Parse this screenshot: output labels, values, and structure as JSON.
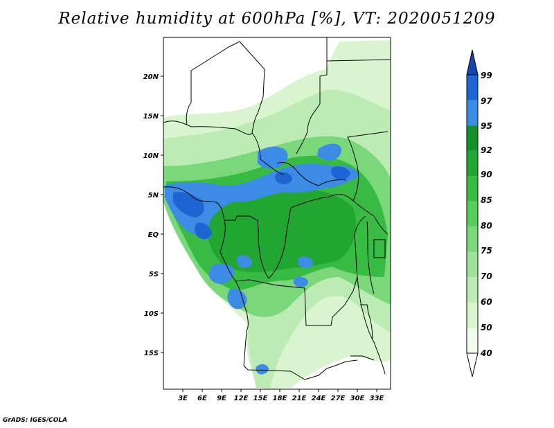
{
  "title": "Relative humidity at 600hPa [%], VT: 2020051209",
  "footer": "GrADS: IGES/COLA",
  "map": {
    "lon_range": [
      0,
      36
    ],
    "lat_range": [
      -20,
      24
    ],
    "lon_ticks": [
      "3E",
      "6E",
      "9E",
      "12E",
      "15E",
      "18E",
      "21E",
      "24E",
      "27E",
      "30E",
      "33E"
    ],
    "lat_ticks": [
      "20N",
      "15N",
      "10N",
      "5N",
      "EQ",
      "5S",
      "10S",
      "15S"
    ]
  },
  "colorbar": {
    "levels": [
      "40",
      "50",
      "60",
      "70",
      "75",
      "80",
      "85",
      "90",
      "92",
      "95",
      "97",
      "99"
    ],
    "colors": [
      "#f0fcec",
      "#d8f5d0",
      "#bcecb4",
      "#9ee29a",
      "#7ad87a",
      "#56cc5a",
      "#38bb42",
      "#22a632",
      "#14902a",
      "#3c8ce6",
      "#1e64d2",
      "#1446b0"
    ]
  }
}
